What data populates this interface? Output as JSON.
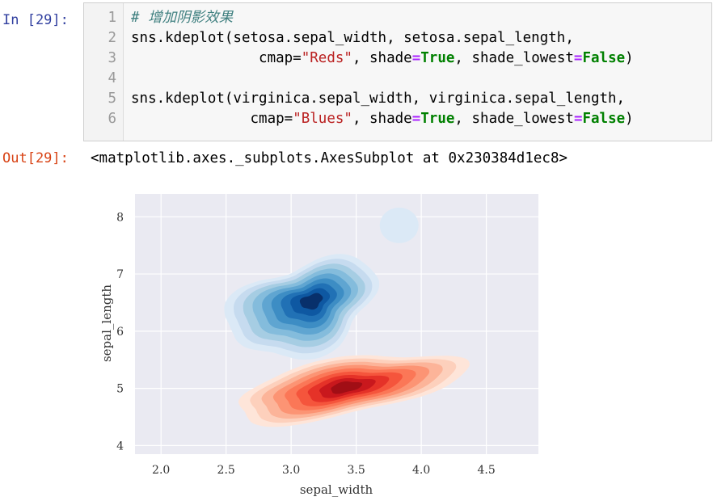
{
  "cell": {
    "in_prompt": "In [29]:",
    "lines": [
      {
        "n": "1",
        "tokens": [
          {
            "t": "# 增加阴影效果",
            "c": "k-comment"
          }
        ]
      },
      {
        "n": "2",
        "tokens": [
          {
            "t": "sns.kdeplot(setosa.sepal_width, setosa.sepal_length,",
            "c": ""
          }
        ]
      },
      {
        "n": "3",
        "tokens": [
          {
            "t": "               cmap=",
            "c": ""
          },
          {
            "t": "\"Reds\"",
            "c": "k-str"
          },
          {
            "t": ", shade",
            "c": ""
          },
          {
            "t": "=",
            "c": "k-eq"
          },
          {
            "t": "True",
            "c": "k-kw"
          },
          {
            "t": ", shade_lowest",
            "c": ""
          },
          {
            "t": "=",
            "c": "k-eq"
          },
          {
            "t": "False",
            "c": "k-kw"
          },
          {
            "t": ")",
            "c": ""
          }
        ]
      },
      {
        "n": "4",
        "tokens": [
          {
            "t": "",
            "c": ""
          }
        ]
      },
      {
        "n": "5",
        "tokens": [
          {
            "t": "sns.kdeplot(virginica.sepal_width, virginica.sepal_length,",
            "c": ""
          }
        ]
      },
      {
        "n": "6",
        "tokens": [
          {
            "t": "              cmap=",
            "c": ""
          },
          {
            "t": "\"Blues\"",
            "c": "k-str"
          },
          {
            "t": ", shade",
            "c": ""
          },
          {
            "t": "=",
            "c": "k-eq"
          },
          {
            "t": "True",
            "c": "k-kw"
          },
          {
            "t": ", shade_lowest",
            "c": ""
          },
          {
            "t": "=",
            "c": "k-eq"
          },
          {
            "t": "False",
            "c": "k-kw"
          },
          {
            "t": ")",
            "c": ""
          }
        ]
      }
    ]
  },
  "output": {
    "out_prompt": "Out[29]:",
    "text": "<matplotlib.axes._subplots.AxesSubplot at 0x230384d1ec8>"
  },
  "chart_data": {
    "type": "kde-contour",
    "xlabel": "sepal_width",
    "ylabel": "sepal_length",
    "x_ticks": [
      2.0,
      2.5,
      3.0,
      3.5,
      4.0,
      4.5
    ],
    "x_tick_labels": [
      "2.0",
      "2.5",
      "3.0",
      "3.5",
      "4.0",
      "4.5"
    ],
    "y_ticks": [
      4,
      5,
      6,
      7,
      8
    ],
    "y_tick_labels": [
      "4",
      "5",
      "6",
      "7",
      "8"
    ],
    "xlim": [
      1.8,
      4.9
    ],
    "ylim": [
      3.85,
      8.4
    ],
    "grid": true,
    "background": "#eaeaf2",
    "series": [
      {
        "cmap": "Reds",
        "center": [
          3.43,
          5.02
        ],
        "levels": 9,
        "colors": [
          "#fee5d9",
          "#fdd0bc",
          "#fcb499",
          "#fc9474",
          "#fb7757",
          "#f5553c",
          "#e53228",
          "#c9181d",
          "#a10e15"
        ]
      },
      {
        "cmap": "Blues",
        "center": [
          3.15,
          6.62
        ],
        "levels": 9,
        "colors": [
          "#dbe9f6",
          "#c6dbef",
          "#a6cde3",
          "#84bcdc",
          "#5fa5d1",
          "#3d8dc4",
          "#2171b5",
          "#0e58a2",
          "#08306b"
        ]
      }
    ]
  }
}
